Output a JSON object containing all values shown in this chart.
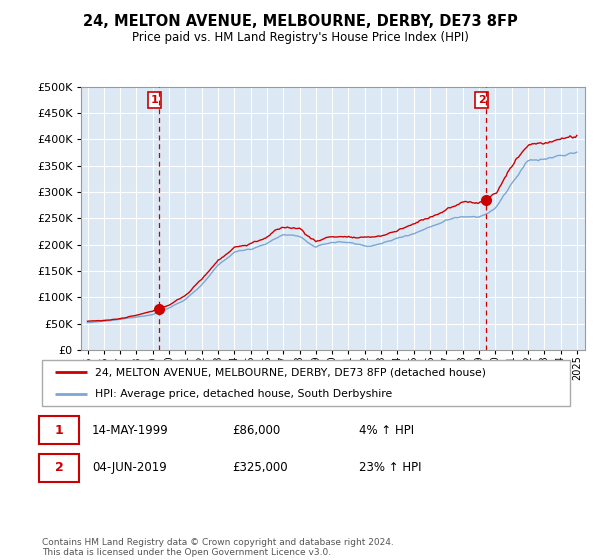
{
  "title": "24, MELTON AVENUE, MELBOURNE, DERBY, DE73 8FP",
  "subtitle": "Price paid vs. HM Land Registry's House Price Index (HPI)",
  "legend_line1": "24, MELTON AVENUE, MELBOURNE, DERBY, DE73 8FP (detached house)",
  "legend_line2": "HPI: Average price, detached house, South Derbyshire",
  "note1_num": "1",
  "note1_date": "14-MAY-1999",
  "note1_price": "£86,000",
  "note1_hpi": "4% ↑ HPI",
  "note2_num": "2",
  "note2_date": "04-JUN-2019",
  "note2_price": "£325,000",
  "note2_hpi": "23% ↑ HPI",
  "footer": "Contains HM Land Registry data © Crown copyright and database right 2024.\nThis data is licensed under the Open Government Licence v3.0.",
  "sale1_year": 1999.37,
  "sale1_price": 86000,
  "sale2_year": 2019.42,
  "sale2_price": 325000,
  "hpi_color": "#7ba7d4",
  "price_color": "#cc0000",
  "bg_color": "#dce9f5",
  "vline_color": "#cc0000",
  "ylim": [
    0,
    500000
  ],
  "yticks": [
    0,
    50000,
    100000,
    150000,
    200000,
    250000,
    300000,
    350000,
    400000,
    450000,
    500000
  ],
  "xlim_start": 1994.6,
  "xlim_end": 2025.5,
  "xticks": [
    1995,
    1996,
    1997,
    1998,
    1999,
    2000,
    2001,
    2002,
    2003,
    2004,
    2005,
    2006,
    2007,
    2008,
    2009,
    2010,
    2011,
    2012,
    2013,
    2014,
    2015,
    2016,
    2017,
    2018,
    2019,
    2020,
    2021,
    2022,
    2023,
    2024,
    2025
  ]
}
